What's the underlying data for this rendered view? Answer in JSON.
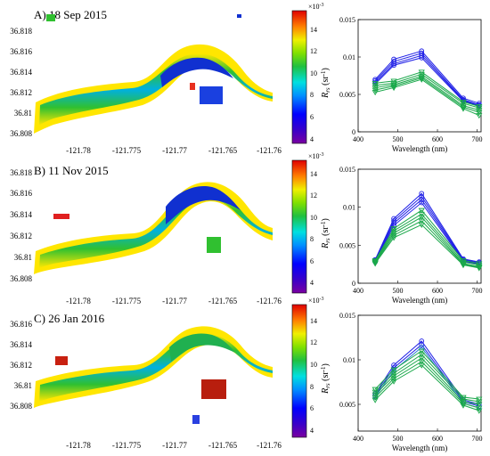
{
  "figure": {
    "colorbar_exponent": "×10",
    "colorbar_exponent_power": "-3",
    "colorbar_ticks": [
      "4",
      "6",
      "8",
      "10",
      "12",
      "14"
    ],
    "colorbar_range": [
      3,
      15
    ],
    "ylabel_main": "R",
    "ylabel_sub": "rs",
    "ylabel_unit": " (sr",
    "ylabel_unit_power": "-1",
    "ylabel_close": ")"
  },
  "chart_data": [
    {
      "type": "heatmap",
      "title": "A) 18 Sep 2015",
      "x_ticks": [
        "-121.78",
        "-121.775",
        "-121.77",
        "-121.765",
        "-121.76"
      ],
      "y_ticks": [
        "36.818",
        "36.816",
        "36.814",
        "36.812",
        "36.81",
        "36.808"
      ],
      "xlim": [
        -121.783,
        -121.759
      ],
      "ylim": [
        36.8075,
        36.819
      ],
      "colormap": "jet",
      "color_range": [
        0.003,
        0.015
      ]
    },
    {
      "type": "line",
      "panel": "A",
      "xlabel": "Wavelength (nm)",
      "x_ticks": [
        "400",
        "500",
        "600",
        "700"
      ],
      "xlim": [
        400,
        710
      ],
      "y_ticks": [
        "0",
        "0.005",
        "0.01",
        "0.015"
      ],
      "ylim": [
        0,
        0.015
      ],
      "x": [
        443,
        490,
        560,
        665,
        705
      ],
      "series": [
        {
          "color": "#1f1fe6",
          "marker": "circle",
          "values": [
            0.007,
            0.0097,
            0.0108,
            0.0045,
            0.0038
          ]
        },
        {
          "color": "#1f1fe6",
          "marker": "circle",
          "values": [
            0.0068,
            0.0094,
            0.0105,
            0.0043,
            0.0036
          ]
        },
        {
          "color": "#1f1fe6",
          "marker": "circle",
          "values": [
            0.0066,
            0.0091,
            0.0102,
            0.0042,
            0.0035
          ]
        },
        {
          "color": "#1f1fe6",
          "marker": "circle",
          "values": [
            0.0064,
            0.0089,
            0.0099,
            0.0041,
            0.0034
          ]
        },
        {
          "color": "#1aa84a",
          "marker": "triangle-down",
          "values": [
            0.0065,
            0.0068,
            0.008,
            0.004,
            0.0034
          ]
        },
        {
          "color": "#1aa84a",
          "marker": "triangle-down",
          "values": [
            0.0062,
            0.0065,
            0.0077,
            0.0038,
            0.0032
          ]
        },
        {
          "color": "#1aa84a",
          "marker": "triangle-down",
          "values": [
            0.0059,
            0.0063,
            0.0074,
            0.0035,
            0.0029
          ]
        },
        {
          "color": "#1aa84a",
          "marker": "triangle-down",
          "values": [
            0.0056,
            0.0061,
            0.0072,
            0.0033,
            0.0026
          ]
        },
        {
          "color": "#1aa84a",
          "marker": "triangle-down",
          "values": [
            0.0053,
            0.0059,
            0.007,
            0.0031,
            0.0022
          ]
        }
      ]
    },
    {
      "type": "heatmap",
      "title": "B) 11 Nov 2015",
      "x_ticks": [
        "-121.78",
        "-121.775",
        "-121.77",
        "-121.765",
        "-121.76"
      ],
      "y_ticks": [
        "36.818",
        "36.816",
        "36.814",
        "36.812",
        "36.81",
        "36.808"
      ],
      "xlim": [
        -121.783,
        -121.759
      ],
      "ylim": [
        36.8075,
        36.819
      ],
      "colormap": "jet",
      "color_range": [
        0.003,
        0.015
      ]
    },
    {
      "type": "line",
      "panel": "B",
      "xlabel": "Wavelength (nm)",
      "x_ticks": [
        "400",
        "500",
        "600",
        "700"
      ],
      "xlim": [
        400,
        710
      ],
      "y_ticks": [
        "0",
        "0.005",
        "0.01",
        "0.015"
      ],
      "ylim": [
        0,
        0.015
      ],
      "x": [
        443,
        490,
        560,
        665,
        705
      ],
      "series": [
        {
          "color": "#1f1fe6",
          "marker": "circle",
          "values": [
            0.0031,
            0.0085,
            0.0118,
            0.0032,
            0.0028
          ]
        },
        {
          "color": "#1f1fe6",
          "marker": "circle",
          "values": [
            0.003,
            0.0082,
            0.0114,
            0.0031,
            0.0027
          ]
        },
        {
          "color": "#1f1fe6",
          "marker": "circle",
          "values": [
            0.0029,
            0.0079,
            0.011,
            0.003,
            0.0026
          ]
        },
        {
          "color": "#1f1fe6",
          "marker": "circle",
          "values": [
            0.0028,
            0.0076,
            0.0106,
            0.0029,
            0.0025
          ]
        },
        {
          "color": "#1aa84a",
          "marker": "triangle-down",
          "values": [
            0.003,
            0.0072,
            0.0096,
            0.003,
            0.0026
          ]
        },
        {
          "color": "#1aa84a",
          "marker": "triangle-down",
          "values": [
            0.0029,
            0.0069,
            0.0091,
            0.0028,
            0.0024
          ]
        },
        {
          "color": "#1aa84a",
          "marker": "triangle-down",
          "values": [
            0.0028,
            0.0066,
            0.0087,
            0.0026,
            0.0022
          ]
        },
        {
          "color": "#1aa84a",
          "marker": "triangle-down",
          "values": [
            0.0027,
            0.0063,
            0.0082,
            0.0025,
            0.0021
          ]
        },
        {
          "color": "#1aa84a",
          "marker": "triangle-down",
          "values": [
            0.0026,
            0.006,
            0.0077,
            0.0024,
            0.002
          ]
        }
      ]
    },
    {
      "type": "heatmap",
      "title": "C) 26 Jan 2016",
      "x_ticks": [
        "-121.78",
        "-121.775",
        "-121.77",
        "-121.765",
        "-121.76"
      ],
      "y_ticks": [
        "36.816",
        "36.814",
        "36.812",
        "36.81",
        "36.808"
      ],
      "xlim": [
        -121.783,
        -121.759
      ],
      "ylim": [
        36.8065,
        36.818
      ],
      "colormap": "jet",
      "color_range": [
        0.003,
        0.015
      ]
    },
    {
      "type": "line",
      "panel": "C",
      "xlabel": "Wavelength (nm)",
      "x_ticks": [
        "400",
        "500",
        "600",
        "700"
      ],
      "xlim": [
        400,
        710
      ],
      "y_ticks": [
        "0.005",
        "0.01",
        "0.015"
      ],
      "ylim": [
        0.002,
        0.015
      ],
      "x": [
        443,
        490,
        560,
        665,
        705
      ],
      "series": [
        {
          "color": "#1f1fe6",
          "marker": "circle",
          "values": [
            0.0062,
            0.0094,
            0.0121,
            0.0055,
            0.005
          ]
        },
        {
          "color": "#1f1fe6",
          "marker": "circle",
          "values": [
            0.006,
            0.0091,
            0.0117,
            0.0053,
            0.0048
          ]
        },
        {
          "color": "#2a7fd0",
          "marker": "circle",
          "values": [
            0.0058,
            0.0088,
            0.0114,
            0.0051,
            0.0046
          ]
        },
        {
          "color": "#1aa84a",
          "marker": "triangle-down",
          "values": [
            0.0067,
            0.0089,
            0.011,
            0.0058,
            0.0056
          ]
        },
        {
          "color": "#1aa84a",
          "marker": "triangle-down",
          "values": [
            0.0064,
            0.0085,
            0.0106,
            0.0056,
            0.0053
          ]
        },
        {
          "color": "#1aa84a",
          "marker": "triangle-down",
          "values": [
            0.0061,
            0.0082,
            0.0102,
            0.0053,
            0.005
          ]
        },
        {
          "color": "#1aa84a",
          "marker": "triangle-down",
          "values": [
            0.0058,
            0.0079,
            0.0098,
            0.0051,
            0.0046
          ]
        },
        {
          "color": "#1aa84a",
          "marker": "triangle-down",
          "values": [
            0.0055,
            0.0076,
            0.0094,
            0.0049,
            0.0043
          ]
        }
      ]
    }
  ]
}
